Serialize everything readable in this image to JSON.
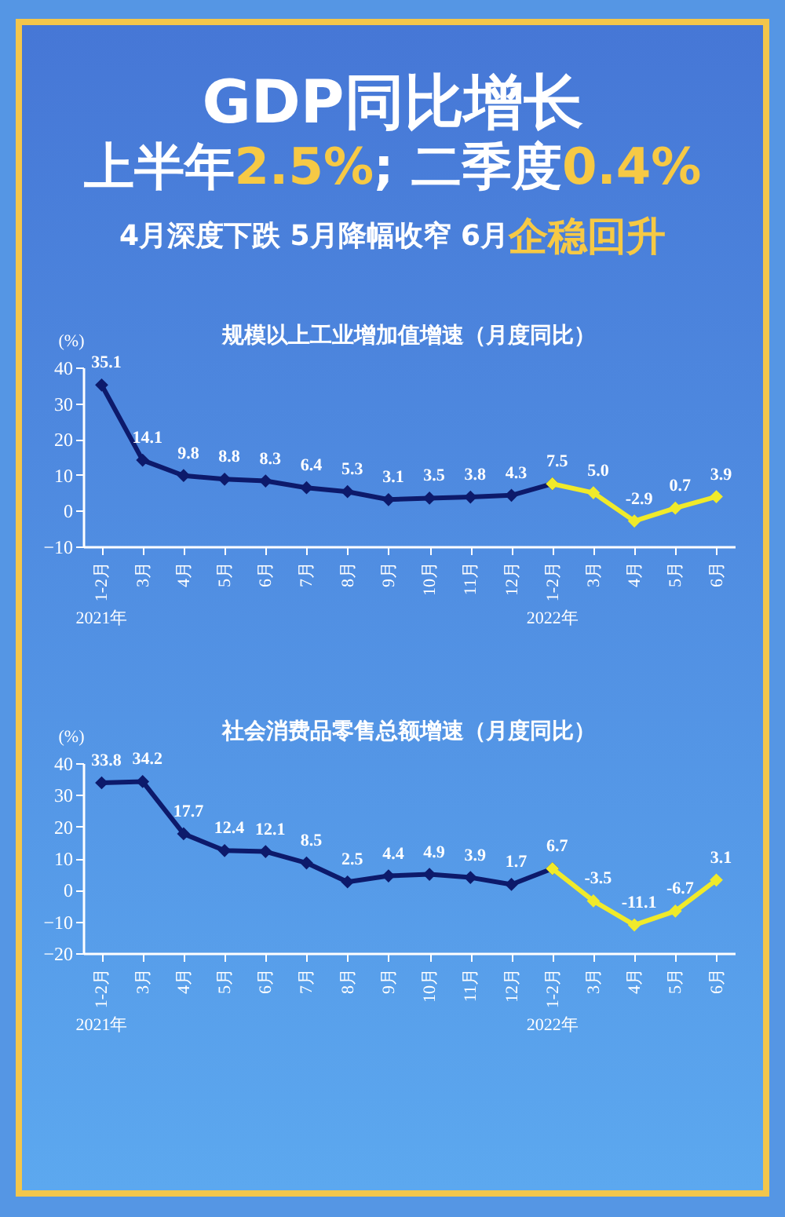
{
  "chart_data": [
    {
      "type": "other",
      "title": "GDP同比增长",
      "subtitle": "上半年2.5%; 二季度0.4%",
      "annotations": [
        "4月深度下跌 5月降幅收窄 6月",
        "企稳回升"
      ]
    },
    {
      "type": "line",
      "title": "规模以上工业增加值增速（月度同比）",
      "ylabel": "(%)",
      "categories": [
        "1-2月",
        "3月",
        "4月",
        "5月",
        "6月",
        "7月",
        "8月",
        "9月",
        "10月",
        "11月",
        "12月",
        "1-2月",
        "3月",
        "4月",
        "5月",
        "6月"
      ],
      "series": [
        {
          "color": "#0d1a6b",
          "values": [
            35.1,
            14.1,
            9.8,
            8.8,
            8.3,
            6.4,
            5.3,
            3.1,
            3.5,
            3.8,
            4.3,
            7.5,
            null,
            null,
            null,
            null
          ],
          "value_labels": [
            "35.1",
            "14.1",
            "9.8",
            "8.8",
            "8.3",
            "6.4",
            "5.3",
            "3.1",
            "3.5",
            "3.8",
            "4.3",
            null,
            null,
            null,
            null,
            null
          ]
        },
        {
          "color": "#f0ea2a",
          "values": [
            null,
            null,
            null,
            null,
            null,
            null,
            null,
            null,
            null,
            null,
            null,
            7.5,
            5.0,
            -2.9,
            0.7,
            3.9
          ],
          "value_labels": [
            null,
            null,
            null,
            null,
            null,
            null,
            null,
            null,
            null,
            null,
            null,
            "7.5",
            "5.0",
            "-2.9",
            "0.7",
            "3.9"
          ]
        }
      ],
      "ylim": [
        -10,
        40
      ],
      "yticks": [
        -10,
        0,
        10,
        20,
        30,
        40
      ],
      "marker": "diamond",
      "annotations": [
        "2021年",
        "2022年"
      ]
    },
    {
      "type": "line",
      "title": "社会消费品零售总额增速（月度同比）",
      "ylabel": "(%)",
      "categories": [
        "1-2月",
        "3月",
        "4月",
        "5月",
        "6月",
        "7月",
        "8月",
        "9月",
        "10月",
        "11月",
        "12月",
        "1-2月",
        "3月",
        "4月",
        "5月",
        "6月"
      ],
      "series": [
        {
          "color": "#0d1a6b",
          "values": [
            33.8,
            34.2,
            17.7,
            12.4,
            12.1,
            8.5,
            2.5,
            4.4,
            4.9,
            3.9,
            1.7,
            6.7,
            null,
            null,
            null,
            null
          ],
          "value_labels": [
            "33.8",
            "34.2",
            "17.7",
            "12.4",
            "12.1",
            "8.5",
            "2.5",
            "4.4",
            "4.9",
            "3.9",
            "1.7",
            null,
            null,
            null,
            null,
            null
          ]
        },
        {
          "color": "#f0ea2a",
          "values": [
            null,
            null,
            null,
            null,
            null,
            null,
            null,
            null,
            null,
            null,
            null,
            6.7,
            -3.5,
            -11.1,
            -6.7,
            3.1
          ],
          "value_labels": [
            null,
            null,
            null,
            null,
            null,
            null,
            null,
            null,
            null,
            null,
            null,
            "6.7",
            "-3.5",
            "-11.1",
            "-6.7",
            "3.1"
          ]
        }
      ],
      "ylim": [
        -20,
        40
      ],
      "yticks": [
        -20,
        -10,
        0,
        10,
        20,
        30,
        40
      ],
      "marker": "diamond",
      "annotations": [
        "2021年",
        "2022年"
      ]
    }
  ]
}
